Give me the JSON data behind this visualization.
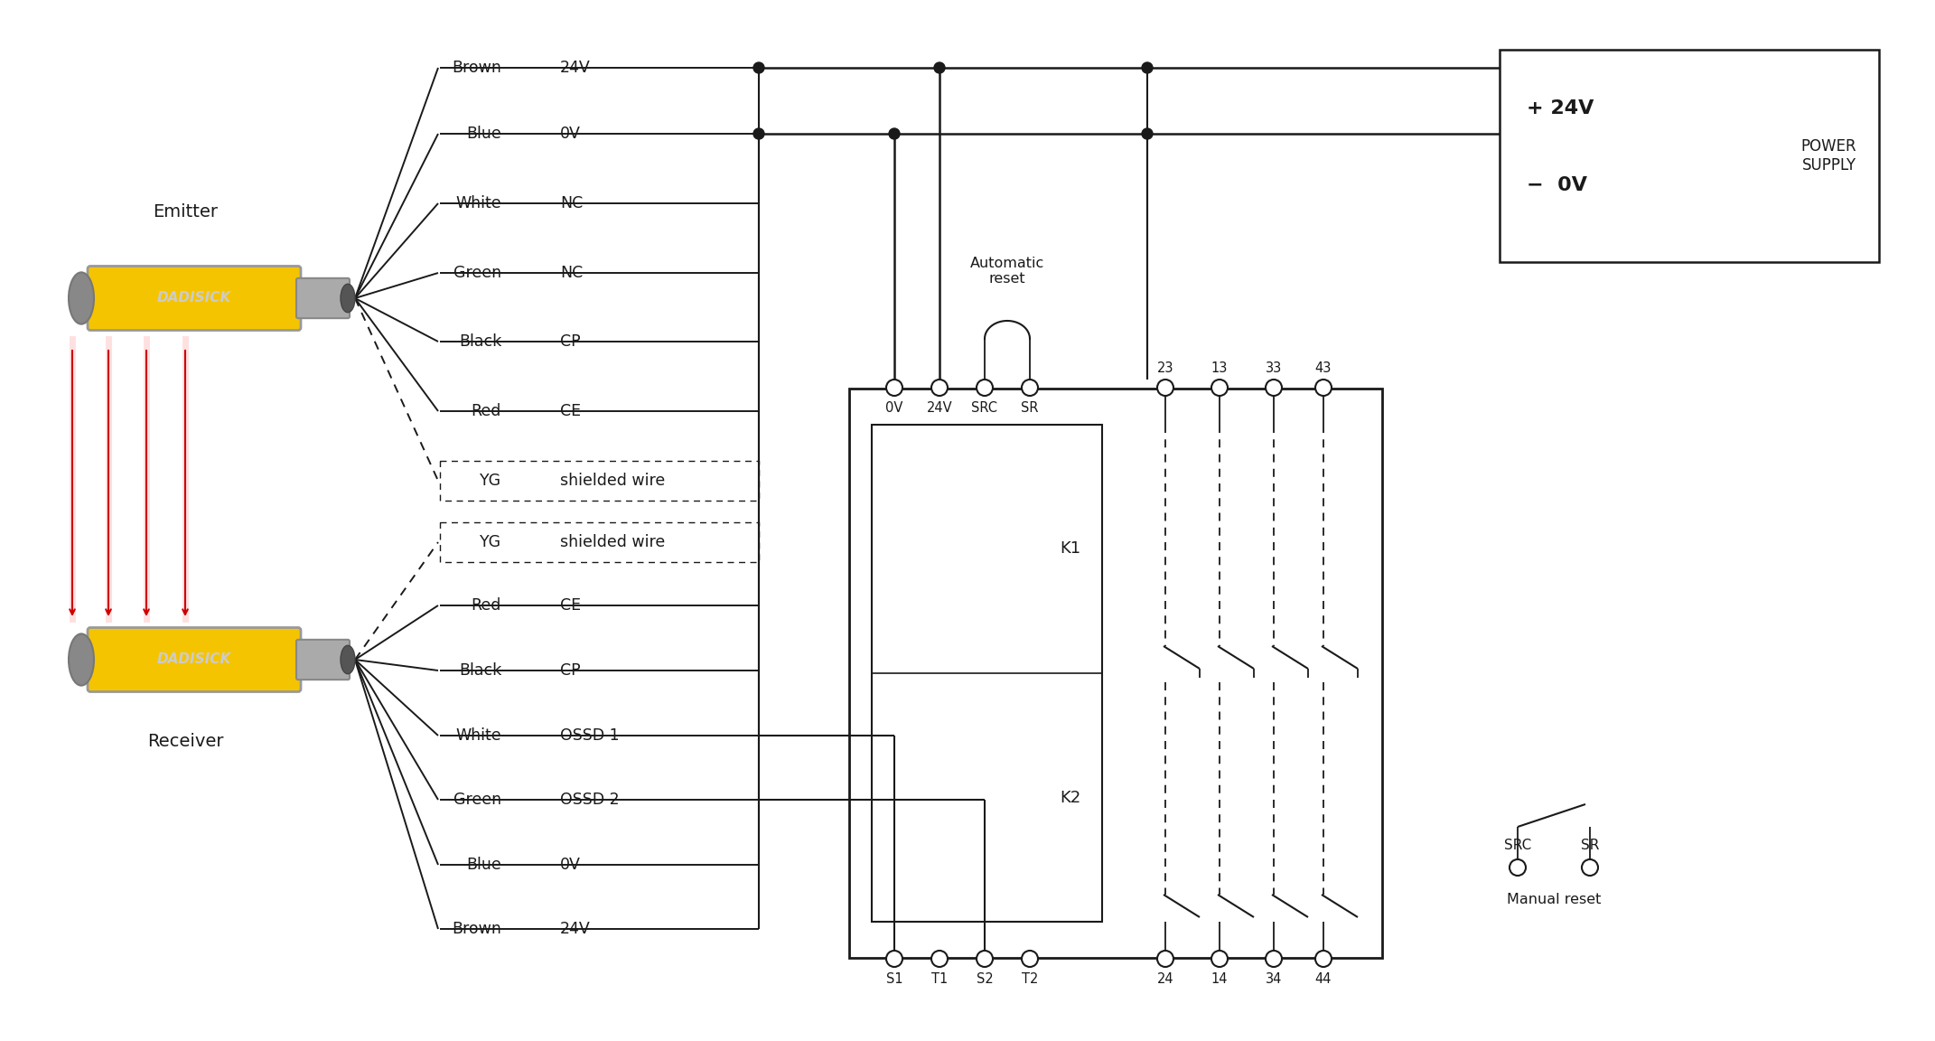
{
  "bg_color": "#ffffff",
  "line_color": "#1a1a1a",
  "emitter_wires": [
    {
      "color_name": "Brown",
      "signal": "24V",
      "dashed": false,
      "connects_right": true
    },
    {
      "color_name": "Blue",
      "signal": "0V",
      "dashed": false,
      "connects_right": true
    },
    {
      "color_name": "White",
      "signal": "NC",
      "dashed": false,
      "connects_right": false
    },
    {
      "color_name": "Green",
      "signal": "NC",
      "dashed": false,
      "connects_right": false
    },
    {
      "color_name": "Black",
      "signal": "CP",
      "dashed": false,
      "connects_right": false
    },
    {
      "color_name": "Red",
      "signal": "CE",
      "dashed": false,
      "connects_right": false
    },
    {
      "color_name": "YG",
      "signal": "shielded wire",
      "dashed": true,
      "connects_right": false
    }
  ],
  "receiver_wires": [
    {
      "color_name": "YG",
      "signal": "shielded wire",
      "dashed": true,
      "connects_right": false
    },
    {
      "color_name": "Red",
      "signal": "CE",
      "dashed": false,
      "connects_right": false
    },
    {
      "color_name": "Black",
      "signal": "CP",
      "dashed": false,
      "connects_right": false
    },
    {
      "color_name": "White",
      "signal": "OSSD 1",
      "dashed": false,
      "connects_right": true
    },
    {
      "color_name": "Green",
      "signal": "OSSD 2",
      "dashed": false,
      "connects_right": true
    },
    {
      "color_name": "Blue",
      "signal": "0V",
      "dashed": false,
      "connects_right": true
    },
    {
      "color_name": "Brown",
      "signal": "24V",
      "dashed": false,
      "connects_right": true
    }
  ],
  "input_terminals": [
    "0V",
    "24V",
    "SRC",
    "SR"
  ],
  "output_terminals_top": [
    "23",
    "13",
    "33",
    "43"
  ],
  "output_terminals_bot": [
    "24",
    "14",
    "34",
    "44"
  ],
  "bottom_terminals": [
    "S1",
    "T1",
    "S2",
    "T2"
  ],
  "relay_labels": [
    "K1",
    "K2"
  ],
  "power_plus": "+ 24V",
  "power_minus": "- 0V",
  "power_text": "POWER\nSUPPLY",
  "auto_reset": "Automatic\nreset",
  "manual_reset": "Manual reset",
  "manual_src": "SRC",
  "manual_sr": "SR",
  "emitter_label": "Emitter",
  "receiver_label": "Receiver",
  "dadisick_text": "DADISICK"
}
